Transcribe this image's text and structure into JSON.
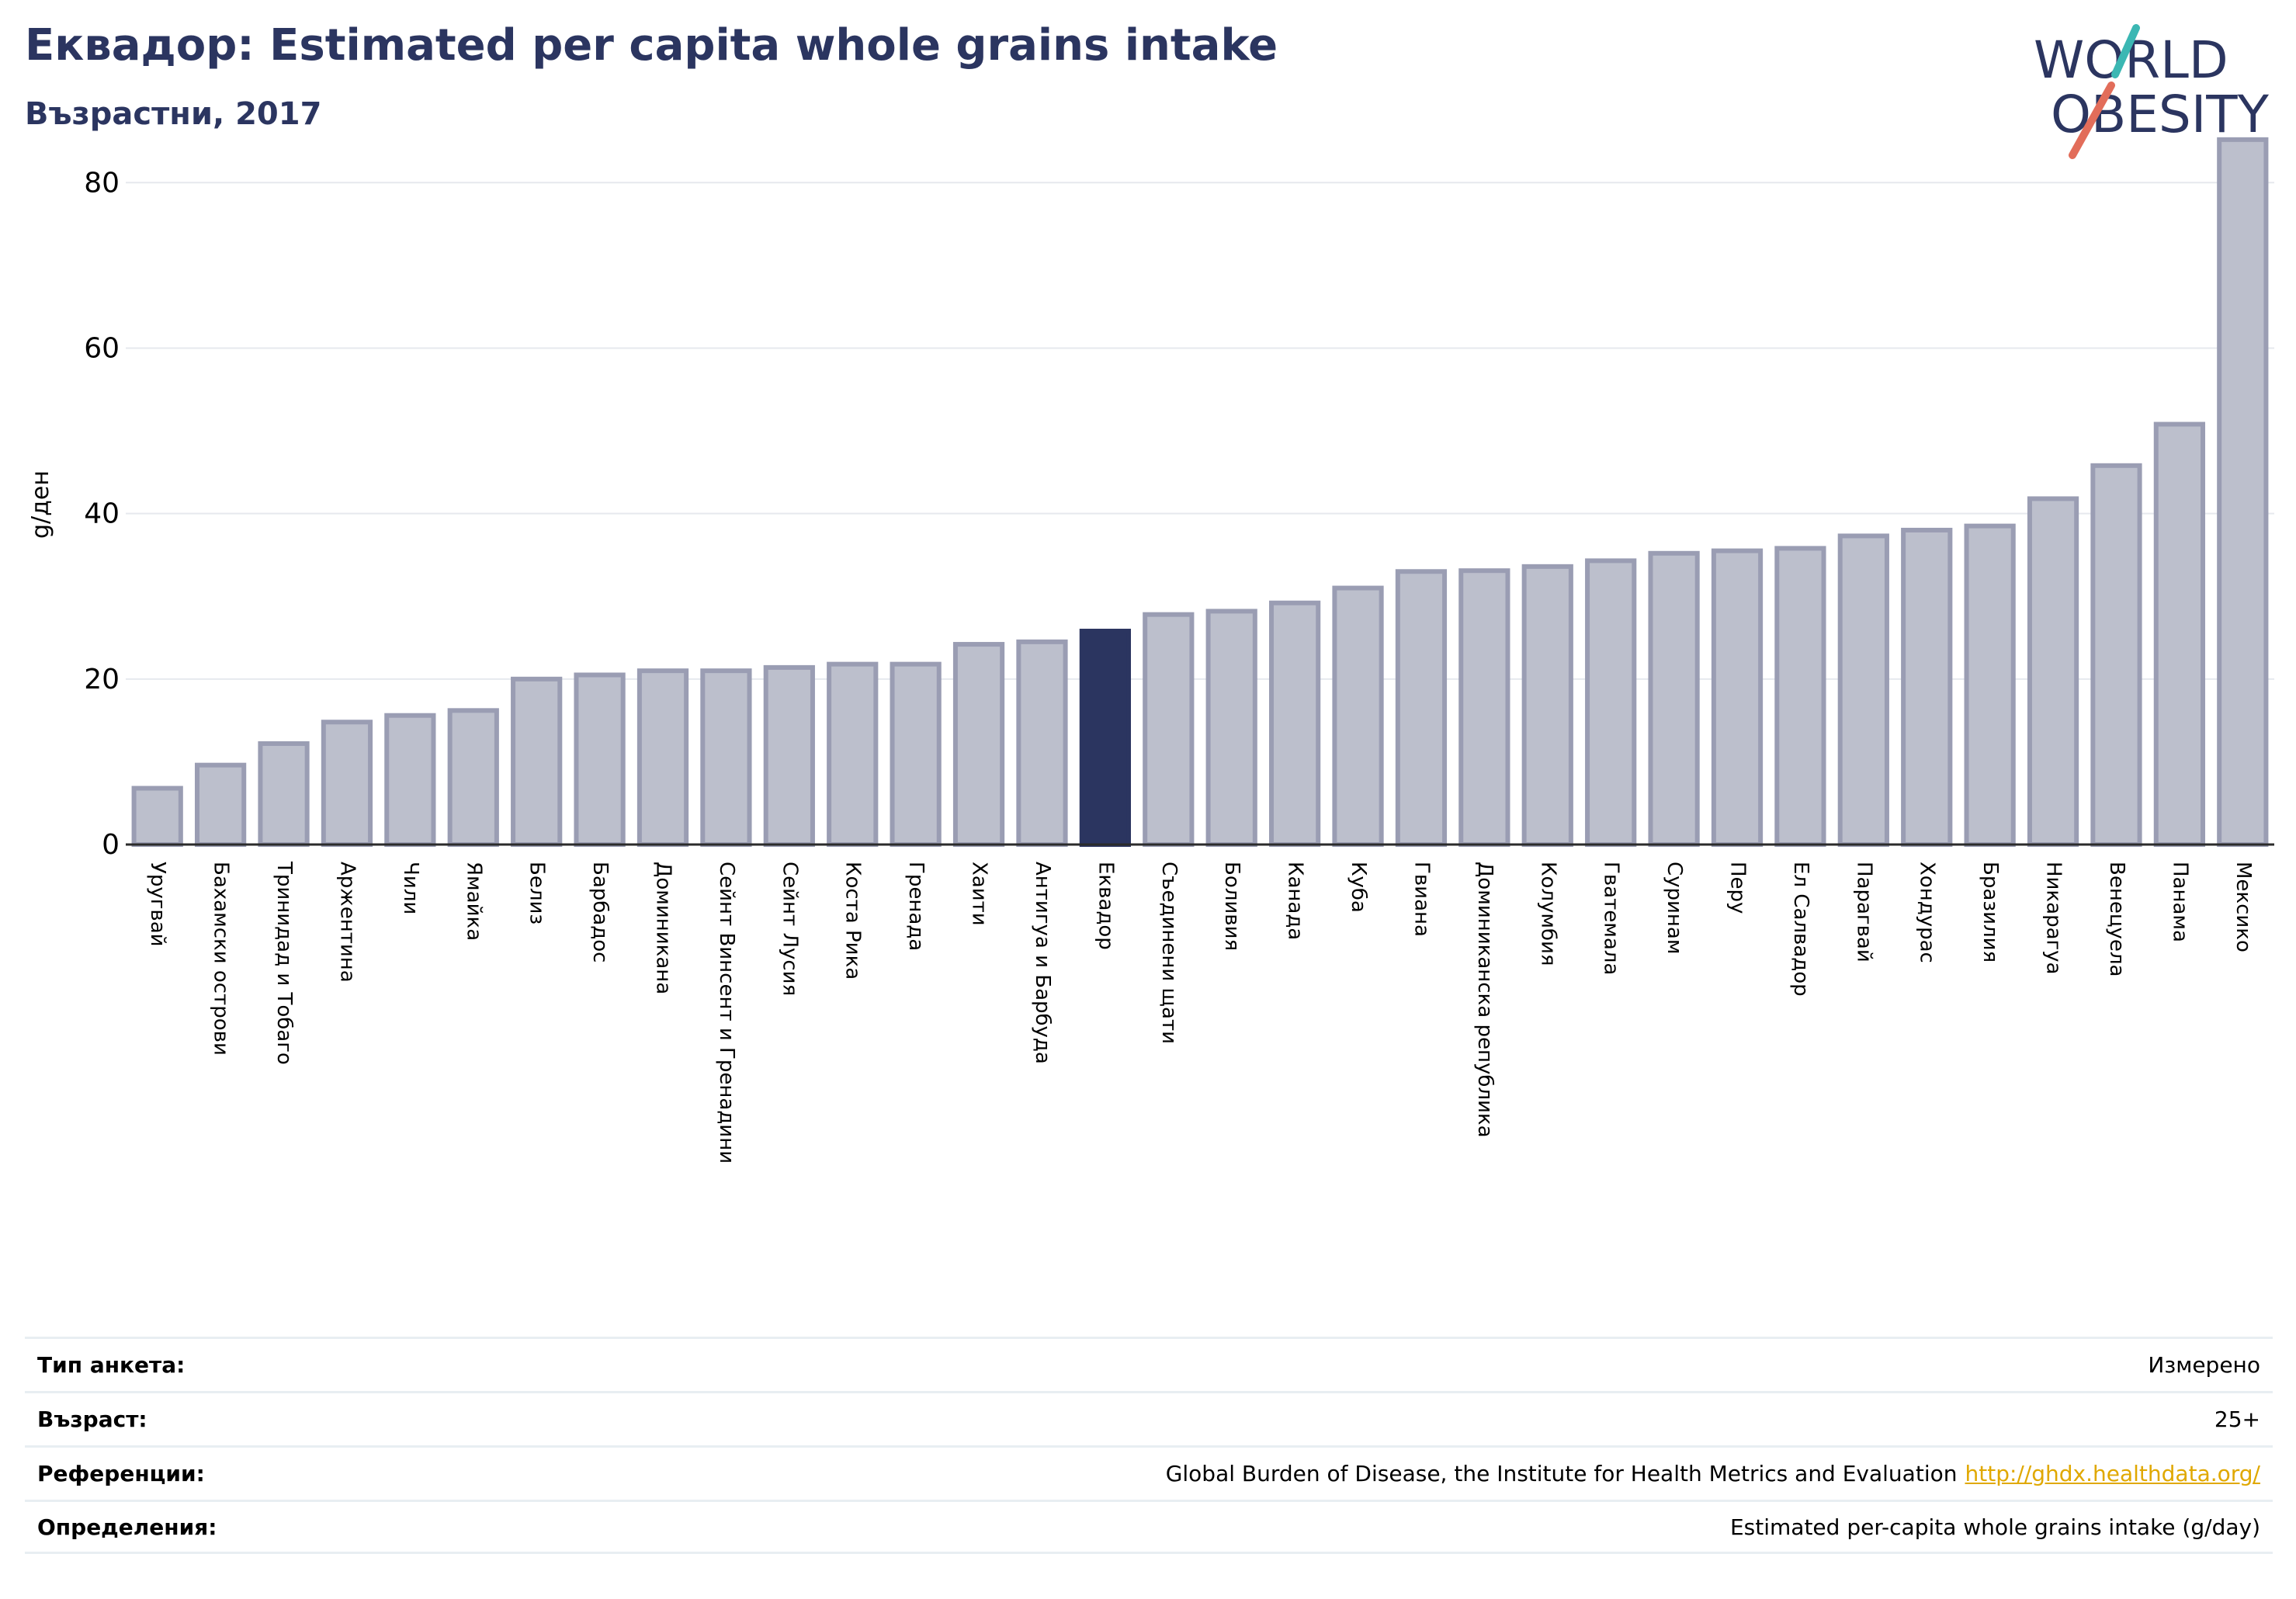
{
  "header": {
    "title": "Еквадор: Estimated per capita whole grains intake",
    "subtitle": "Възрастни, 2017"
  },
  "logo": {
    "line1": "WORLD",
    "line2": "OBESITY"
  },
  "colors": {
    "bar": "#bcbfcc",
    "bar_border": "#9a9db3",
    "highlight": "#2b3560",
    "grid": "#e6e9ee",
    "title": "#2b3560"
  },
  "chart_data": {
    "type": "bar",
    "ylabel": "g/ден",
    "ylim": [
      0,
      88
    ],
    "yticks": [
      0,
      20,
      40,
      60,
      80
    ],
    "grid": true,
    "highlight": "Еквадор",
    "categories": [
      "Уругвай",
      "Бахамски острови",
      "Тринидад и Тобаго",
      "Аржентина",
      "Чили",
      "Ямайка",
      "Белиз",
      "Барбадос",
      "Доминикана",
      "Сейнт Винсент и Гренадини",
      "Сейнт Лусия",
      "Коста Рика",
      "Гренада",
      "Хаити",
      "Антигуа и Барбуда",
      "Еквадор",
      "Съединени щати",
      "Боливия",
      "Канада",
      "Куба",
      "Гвиана",
      "Доминиканска република",
      "Колумбия",
      "Гватемала",
      "Суринам",
      "Перу",
      "Ел Салвадор",
      "Парагвай",
      "Хондурас",
      "Бразилия",
      "Никарагуа",
      "Венецуела",
      "Панама",
      "Мексико"
    ],
    "values": [
      6.8,
      9.6,
      12.2,
      14.8,
      15.6,
      16.2,
      20.0,
      20.5,
      21.0,
      21.0,
      21.4,
      21.8,
      21.8,
      24.2,
      24.5,
      25.8,
      27.8,
      28.2,
      29.2,
      31.0,
      33.0,
      33.1,
      33.6,
      34.3,
      35.2,
      35.5,
      35.8,
      37.3,
      38.0,
      38.5,
      41.8,
      45.8,
      50.8,
      85.2
    ]
  },
  "info": {
    "rows": [
      {
        "label": "Тип анкета:",
        "value": "Измерено",
        "link": ""
      },
      {
        "label": "Възраст:",
        "value": "25+",
        "link": ""
      },
      {
        "label": "Референции:",
        "value": "Global Burden of Disease, the Institute for Health Metrics and Evaluation",
        "link": "http://ghdx.healthdata.org/"
      },
      {
        "label": "Определения:",
        "value": "Estimated per-capita whole grains intake (g/day)",
        "link": ""
      }
    ]
  }
}
